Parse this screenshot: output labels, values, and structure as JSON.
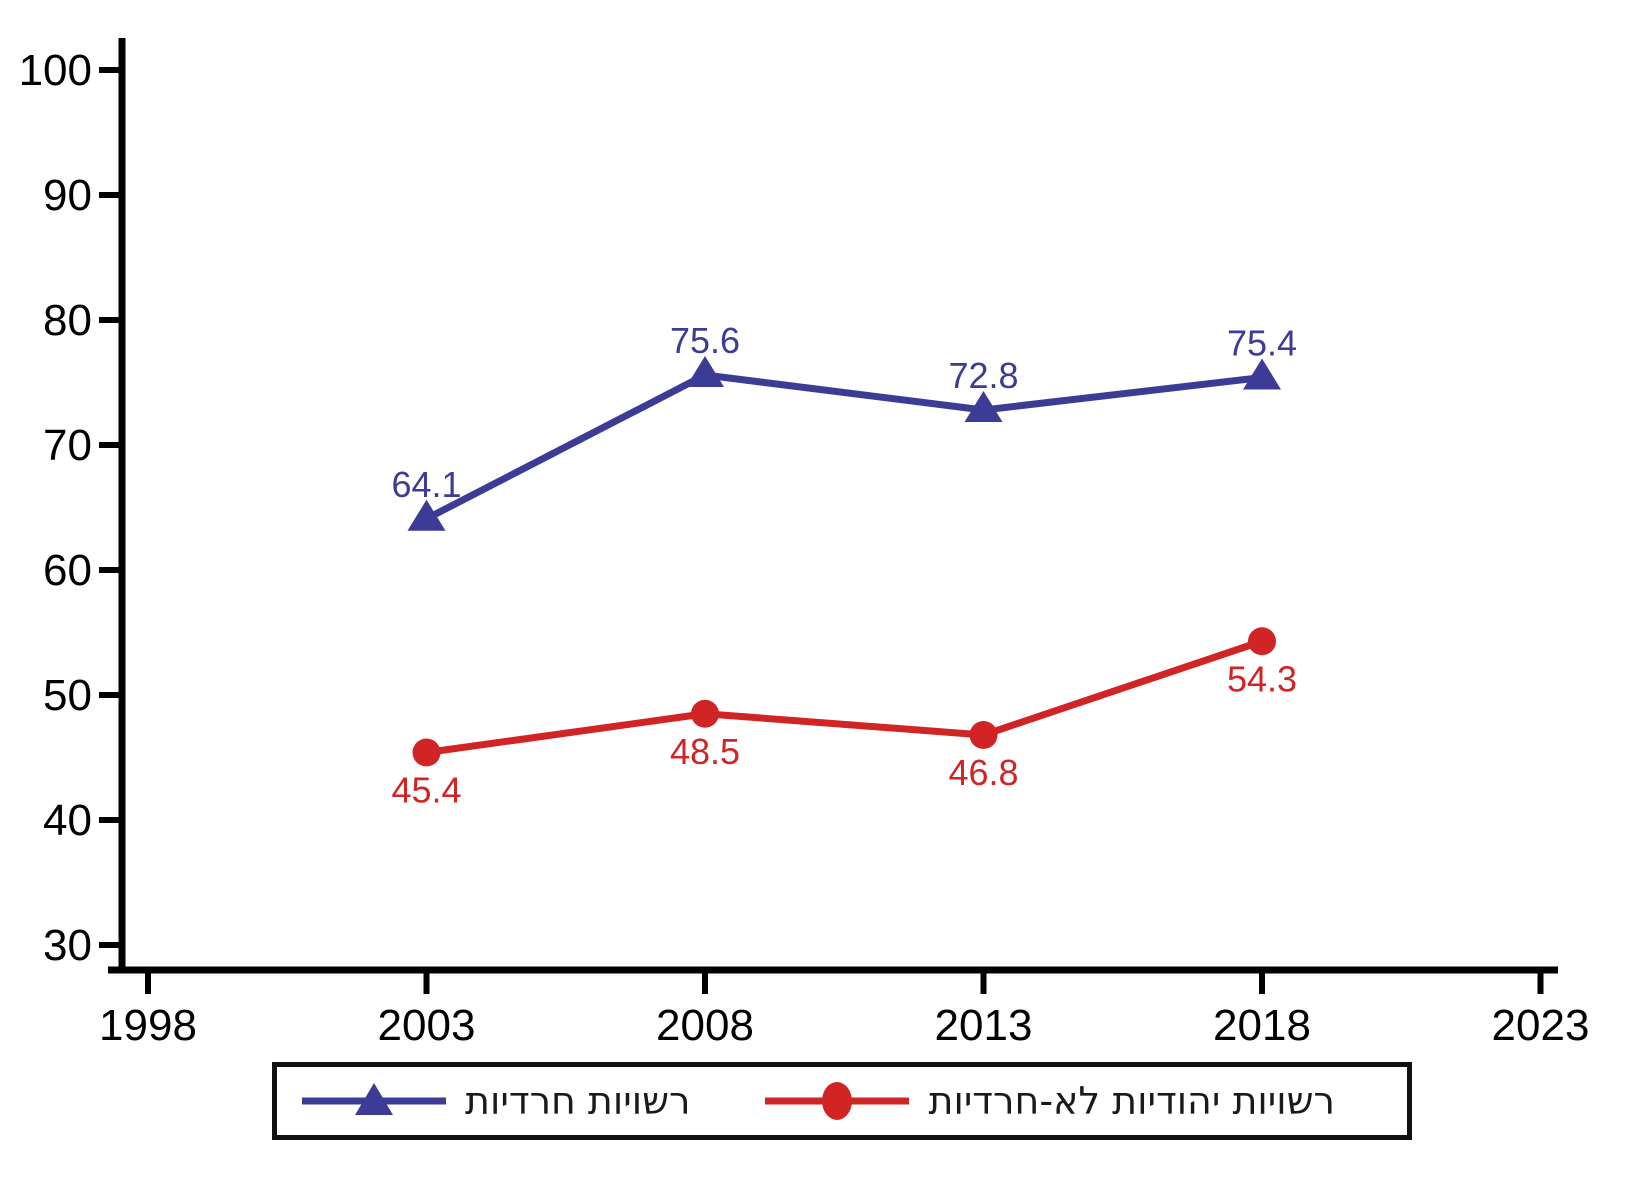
{
  "chart_data": {
    "type": "line",
    "x": [
      2003,
      2008,
      2013,
      2018
    ],
    "series": [
      {
        "name": "רשויות חרדיות",
        "values": [
          64.1,
          75.6,
          72.8,
          75.4
        ],
        "color": "#3c3c96",
        "marker": "triangle",
        "label_position": "above"
      },
      {
        "name": "רשויות יהודיות לא-חרדיות",
        "values": [
          45.4,
          48.5,
          46.8,
          54.3
        ],
        "color": "#d12424",
        "marker": "circle",
        "label_position": "below"
      }
    ],
    "title": "",
    "xlabel": "",
    "ylabel": "",
    "x_ticks": [
      1998,
      2003,
      2008,
      2013,
      2018,
      2023
    ],
    "y_ticks": [
      30,
      40,
      50,
      60,
      70,
      80,
      90,
      100
    ],
    "xlim": [
      1997,
      2024
    ],
    "ylim": [
      27,
      103
    ],
    "grid": false,
    "legend_position": "bottom",
    "axis_color": "#000000",
    "background_color": "#ffffff"
  }
}
